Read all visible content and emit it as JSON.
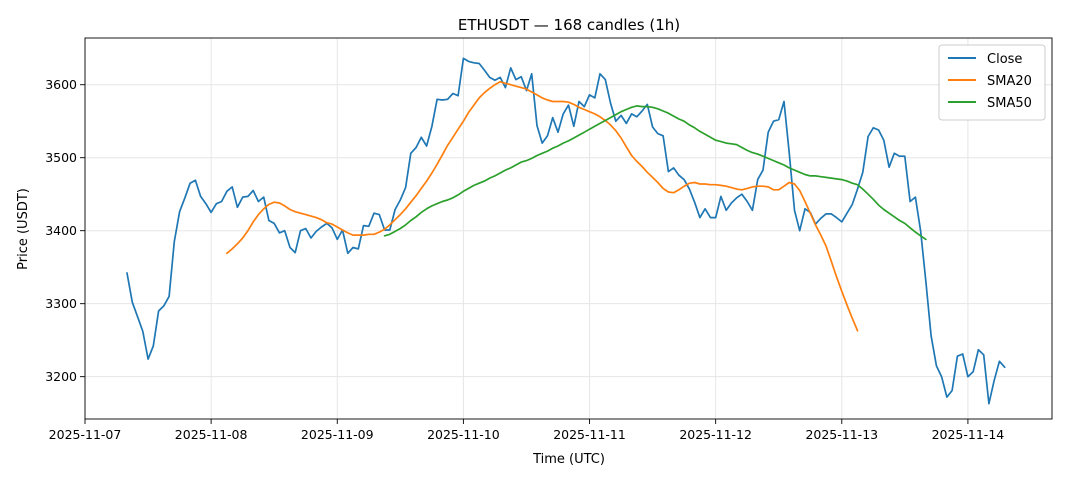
{
  "chart_data": {
    "type": "line",
    "title": "ETHUSDT — 168 candles (1h)",
    "xlabel": "Time (UTC)",
    "ylabel": "Price (USDT)",
    "x_start": "2025-11-07 08:00",
    "x_step_hours": 1,
    "xlim": [
      "2025-11-07 00:00",
      "2025-11-14 16:00"
    ],
    "ylim": [
      3142,
      3664
    ],
    "x_ticks": [
      "2025-11-07",
      "2025-11-08",
      "2025-11-09",
      "2025-11-10",
      "2025-11-11",
      "2025-11-12",
      "2025-11-13",
      "2025-11-14"
    ],
    "y_ticks": [
      3200,
      3300,
      3400,
      3500,
      3600
    ],
    "grid": true,
    "legend_position": "top-right",
    "series": [
      {
        "name": "Close",
        "color": "#1f77b4",
        "offset": 0,
        "values": [
          3342,
          3302,
          3282,
          3262,
          3224,
          3242,
          3290,
          3297,
          3310,
          3385,
          3426,
          3445,
          3465,
          3469,
          3447,
          3437,
          3425,
          3437,
          3440,
          3454,
          3460,
          3432,
          3446,
          3447,
          3455,
          3440,
          3446,
          3414,
          3410,
          3397,
          3400,
          3377,
          3370,
          3400,
          3403,
          3390,
          3399,
          3405,
          3410,
          3404,
          3388,
          3401,
          3369,
          3377,
          3375,
          3407,
          3406,
          3424,
          3422,
          3401,
          3401,
          3429,
          3442,
          3459,
          3506,
          3514,
          3528,
          3516,
          3543,
          3580,
          3579,
          3580,
          3588,
          3585,
          3636,
          3632,
          3630,
          3629,
          3620,
          3610,
          3606,
          3610,
          3596,
          3623,
          3607,
          3611,
          3592,
          3615,
          3544,
          3520,
          3530,
          3555,
          3535,
          3560,
          3572,
          3543,
          3577,
          3570,
          3586,
          3582,
          3615,
          3607,
          3575,
          3550,
          3558,
          3547,
          3560,
          3556,
          3564,
          3573,
          3542,
          3533,
          3530,
          3481,
          3486,
          3476,
          3470,
          3457,
          3439,
          3418,
          3430,
          3418,
          3418,
          3447,
          3428,
          3438,
          3445,
          3450,
          3440,
          3428,
          3470,
          3483,
          3535,
          3550,
          3552,
          3577,
          3507,
          3428,
          3400,
          3430,
          3425,
          3409,
          3417,
          3423,
          3423,
          3418,
          3412,
          3424,
          3436,
          3457,
          3480,
          3529,
          3541,
          3538,
          3524,
          3487,
          3506,
          3502,
          3502,
          3440,
          3446,
          3400,
          3330,
          3256,
          3215,
          3200,
          3172,
          3181,
          3228,
          3231,
          3200,
          3207,
          3237,
          3230,
          3163,
          3195,
          3221,
          3213
        ]
      },
      {
        "name": "SMA20",
        "color": "#ff7f0e",
        "offset": 19,
        "values": [
          3369,
          3375,
          3382,
          3390,
          3400,
          3412,
          3422,
          3430,
          3436,
          3439,
          3438,
          3434,
          3429,
          3426,
          3424,
          3422,
          3420,
          3418,
          3415,
          3411,
          3409,
          3405,
          3401,
          3397,
          3394,
          3394,
          3394,
          3395,
          3395,
          3398,
          3402,
          3408,
          3415,
          3422,
          3430,
          3439,
          3448,
          3458,
          3468,
          3479,
          3491,
          3504,
          3517,
          3528,
          3539,
          3550,
          3562,
          3572,
          3582,
          3589,
          3595,
          3600,
          3604,
          3602,
          3600,
          3598,
          3596,
          3594,
          3590,
          3586,
          3582,
          3579,
          3577,
          3577,
          3577,
          3576,
          3573,
          3569,
          3566,
          3563,
          3560,
          3556,
          3551,
          3545,
          3537,
          3527,
          3515,
          3503,
          3495,
          3488,
          3480,
          3473,
          3466,
          3458,
          3453,
          3452,
          3456,
          3461,
          3465,
          3466,
          3464,
          3464,
          3463,
          3463,
          3462,
          3461,
          3459,
          3457,
          3456,
          3458,
          3460,
          3461,
          3461,
          3460,
          3456,
          3456,
          3461,
          3466,
          3464,
          3455,
          3440,
          3424,
          3408,
          3394,
          3379,
          3358,
          3337,
          3317,
          3298,
          3280,
          3263
        ]
      },
      {
        "name": "SMA50",
        "color": "#2ca02c",
        "offset": 49,
        "values": [
          3393,
          3395,
          3399,
          3403,
          3408,
          3414,
          3419,
          3425,
          3430,
          3434,
          3437,
          3440,
          3442,
          3445,
          3449,
          3454,
          3458,
          3462,
          3465,
          3468,
          3472,
          3475,
          3479,
          3483,
          3486,
          3490,
          3494,
          3496,
          3499,
          3503,
          3506,
          3509,
          3513,
          3516,
          3520,
          3523,
          3527,
          3531,
          3535,
          3539,
          3543,
          3547,
          3551,
          3555,
          3559,
          3563,
          3566,
          3569,
          3571,
          3570,
          3570,
          3569,
          3567,
          3564,
          3561,
          3557,
          3553,
          3550,
          3545,
          3541,
          3536,
          3532,
          3528,
          3524,
          3522,
          3520,
          3519,
          3518,
          3514,
          3510,
          3507,
          3505,
          3502,
          3499,
          3496,
          3493,
          3490,
          3486,
          3483,
          3480,
          3477,
          3475,
          3475,
          3474,
          3473,
          3472,
          3471,
          3470,
          3468,
          3465,
          3463,
          3457,
          3450,
          3443,
          3435,
          3429,
          3424,
          3419,
          3414,
          3410,
          3404,
          3398,
          3393,
          3388
        ]
      }
    ]
  }
}
